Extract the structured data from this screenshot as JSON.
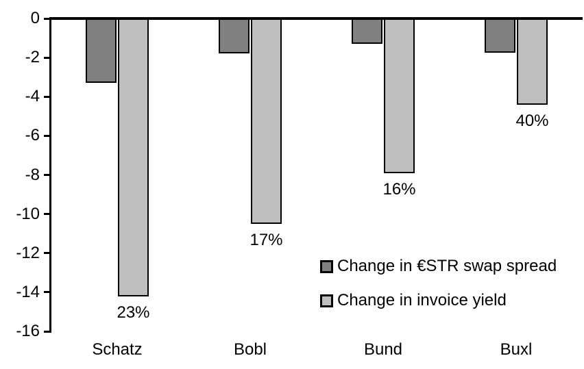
{
  "chart_data": {
    "type": "bar",
    "title": "",
    "categories": [
      "Schatz",
      "Bobl",
      "Bund",
      "Buxl"
    ],
    "series": [
      {
        "name": "Change in €STR swap spread",
        "color": "#808080",
        "values": [
          -3.3,
          -1.8,
          -1.3,
          -1.75
        ]
      },
      {
        "name": "Change in invoice yield",
        "color": "#bfbfbf",
        "values": [
          -14.2,
          -10.5,
          -7.9,
          -4.4
        ]
      }
    ],
    "bar_labels": {
      "series_index": 1,
      "values": [
        "23%",
        "17%",
        "16%",
        "40%"
      ]
    },
    "yticks": [
      "0",
      "-2",
      "-4",
      "-6",
      "-8",
      "-10",
      "-12",
      "-14",
      "-16"
    ],
    "ylim": [
      -16,
      0
    ],
    "xlabel": "",
    "ylabel": "",
    "grid": false,
    "legend": {
      "position": "inside-bottom-right"
    },
    "colors": {
      "axis": "#000000",
      "text": "#000000",
      "background": "#ffffff",
      "bar_border": "#000000"
    }
  }
}
